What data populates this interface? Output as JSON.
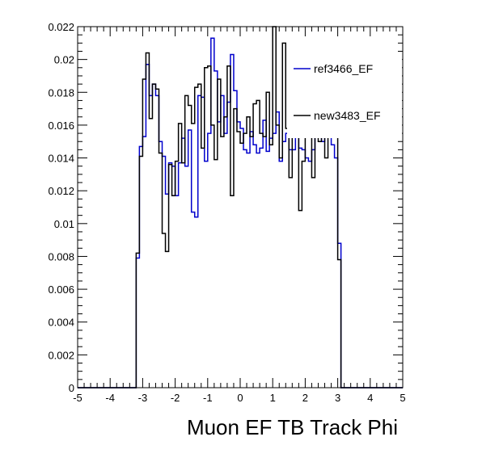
{
  "chart_data": {
    "type": "line",
    "xlabel": "Muon EF TB Track Phi",
    "ylabel": "",
    "xlim": [
      -5,
      5
    ],
    "ylim": [
      0,
      0.022
    ],
    "x_ticks": [
      "-5",
      "-4",
      "-3",
      "-2",
      "-1",
      "0",
      "1",
      "2",
      "3",
      "4",
      "5"
    ],
    "y_ticks": [
      "0",
      "0.002",
      "0.004",
      "0.006",
      "0.008",
      "0.01",
      "0.012",
      "0.014",
      "0.016",
      "0.018",
      "0.02",
      "0.022"
    ],
    "bin_edges": [
      -3.2,
      -3.1,
      -3.0,
      -2.9,
      -2.8,
      -2.7,
      -2.6,
      -2.5,
      -2.4,
      -2.3,
      -2.2,
      -2.1,
      -2.0,
      -1.9,
      -1.8,
      -1.7,
      -1.6,
      -1.5,
      -1.4,
      -1.3,
      -1.2,
      -1.1,
      -1.0,
      -0.9,
      -0.8,
      -0.7,
      -0.6,
      -0.5,
      -0.4,
      -0.3,
      -0.2,
      -0.1,
      0.0,
      0.1,
      0.2,
      0.3,
      0.4,
      0.5,
      0.6,
      0.7,
      0.8,
      0.9,
      1.0,
      1.1,
      1.2,
      1.3,
      1.4,
      1.5,
      1.6,
      1.7,
      1.8,
      1.9,
      2.0,
      2.1,
      2.2,
      2.3,
      2.4,
      2.5,
      2.6,
      2.7,
      2.8,
      2.9,
      3.0,
      3.1,
      3.2
    ],
    "series": [
      {
        "name": "ref3466_EF",
        "color": "#0000cc",
        "values": [
          0.0079,
          0.0147,
          0.0153,
          0.0197,
          0.0178,
          0.0185,
          0.0178,
          0.015,
          0.0141,
          0.0118,
          0.0137,
          0.0135,
          0.0117,
          0.0137,
          0.0152,
          0.0135,
          0.0157,
          0.0107,
          0.0104,
          0.0178,
          0.0177,
          0.0138,
          0.0155,
          0.0213,
          0.0193,
          0.0162,
          0.0178,
          0.0155,
          0.0174,
          0.0203,
          0.0181,
          0.0162,
          0.0158,
          0.0145,
          0.0143,
          0.0156,
          0.0148,
          0.0143,
          0.0146,
          0.0163,
          0.0144,
          0.0152,
          0.0155,
          0.0168,
          0.0138,
          0.015,
          0.0155,
          0.0145,
          0.0145,
          0.0162,
          0.0146,
          0.0145,
          0.014,
          0.0138,
          0.0145,
          0.0155,
          0.0153,
          0.015,
          0.0158,
          0.0163,
          0.0148,
          0.014,
          0.0088,
          0.0
        ]
      },
      {
        "name": "new3483_EF",
        "color": "#000000",
        "values": [
          0.0082,
          0.0141,
          0.0188,
          0.0204,
          0.0164,
          0.0185,
          0.0182,
          0.0143,
          0.0094,
          0.0083,
          0.0136,
          0.0117,
          0.0138,
          0.0161,
          0.0137,
          0.0178,
          0.0172,
          0.0161,
          0.0183,
          0.0185,
          0.0146,
          0.0195,
          0.0196,
          0.016,
          0.0139,
          0.0188,
          0.0153,
          0.0165,
          0.0196,
          0.0117,
          0.017,
          0.0156,
          0.0149,
          0.0155,
          0.0165,
          0.0153,
          0.0173,
          0.0175,
          0.0155,
          0.0153,
          0.018,
          0.0148,
          0.0224,
          0.016,
          0.014,
          0.021,
          0.0158,
          0.0128,
          0.0197,
          0.016,
          0.0108,
          0.0138,
          0.0182,
          0.0158,
          0.0128,
          0.0175,
          0.015,
          0.0165,
          0.014,
          0.0186,
          0.0185,
          0.017,
          0.0078,
          0.0
        ]
      }
    ],
    "legend": {
      "position": "top-right",
      "entries": [
        "ref3466_EF",
        "new3483_EF"
      ]
    },
    "grid": false
  }
}
